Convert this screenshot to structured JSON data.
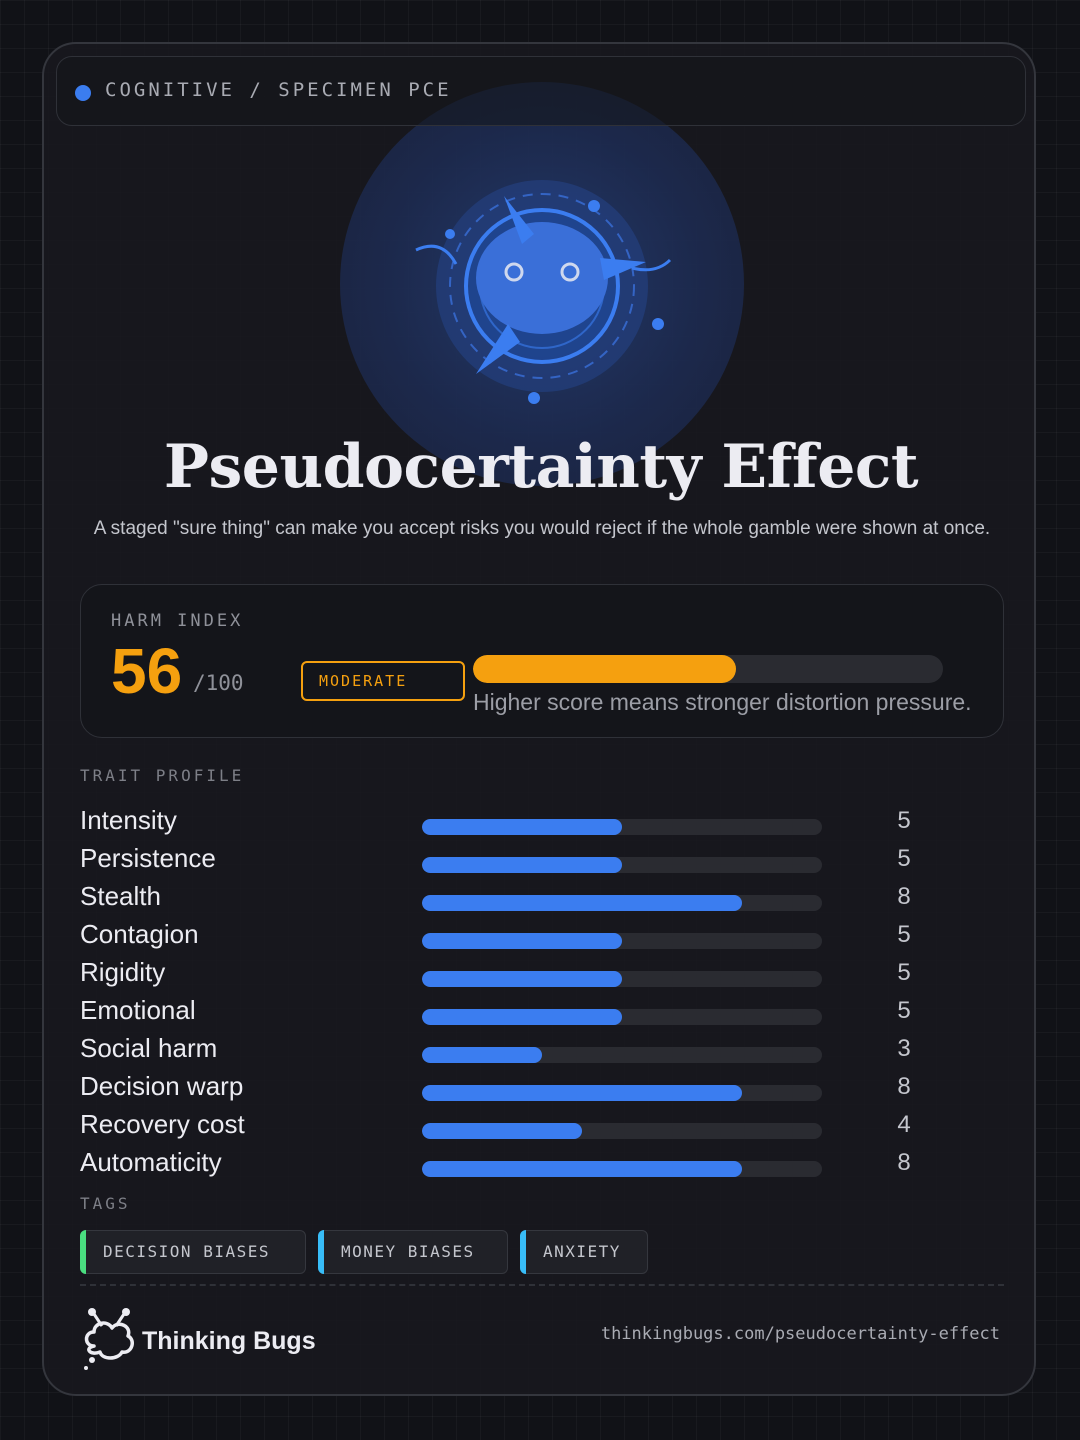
{
  "header": {
    "label": "COGNITIVE / SPECIMEN PCE",
    "dot_color": "#3b7df0"
  },
  "hero": {
    "mascot_icon": "blue-bug-mascot-icon",
    "title": "Pseudocertainty Effect",
    "subtitle": "A staged \"sure thing\" can make you accept risks you would reject if the whole gamble were shown at once."
  },
  "harm": {
    "label": "HARM INDEX",
    "score": "56",
    "max": "/100",
    "score_value": 56,
    "max_value": 100,
    "level": "MODERATE",
    "note": "Higher score means stronger distortion pressure.",
    "color": "#f5a00f"
  },
  "traits": {
    "label": "TRAIT PROFILE",
    "max_value": 10,
    "bar_color": "#3b7df0",
    "items": [
      {
        "name": "Intensity",
        "value": 5
      },
      {
        "name": "Persistence",
        "value": 5
      },
      {
        "name": "Stealth",
        "value": 8
      },
      {
        "name": "Contagion",
        "value": 5
      },
      {
        "name": "Rigidity",
        "value": 5
      },
      {
        "name": "Emotional",
        "value": 5
      },
      {
        "name": "Social harm",
        "value": 3
      },
      {
        "name": "Decision warp",
        "value": 8
      },
      {
        "name": "Recovery cost",
        "value": 4
      },
      {
        "name": "Automaticity",
        "value": 8
      }
    ]
  },
  "tags": {
    "label": "TAGS",
    "items": [
      {
        "label": "DECISION BIASES",
        "accent": "#4ade80"
      },
      {
        "label": "MONEY BIASES",
        "accent": "#38bdf8"
      },
      {
        "label": "ANXIETY",
        "accent": "#38bdf8"
      }
    ]
  },
  "footer": {
    "brand_icon": "thinking-bugs-logo-icon",
    "brand_name": "Thinking Bugs",
    "url": "thinkingbugs.com/pseudocertainty-effect"
  }
}
